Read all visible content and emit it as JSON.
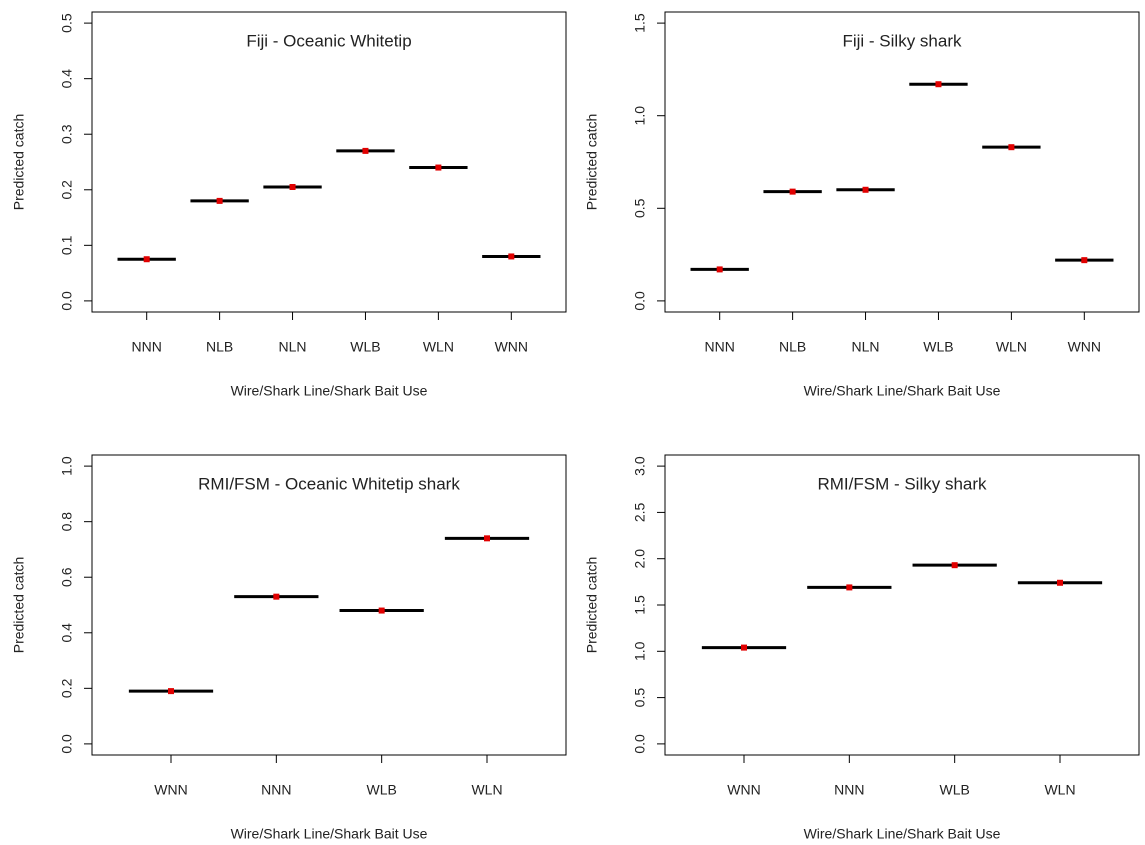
{
  "chart_data": [
    {
      "type": "line-marker",
      "title": "Fiji - Oceanic Whitetip",
      "ylabel": "Predicted catch",
      "xlabel": "Wire/Shark Line/Shark Bait Use",
      "categories": [
        "NNN",
        "NLB",
        "NLN",
        "WLB",
        "WLN",
        "WNN"
      ],
      "values": [
        0.075,
        0.18,
        0.205,
        0.27,
        0.24,
        0.08
      ],
      "color": "#000000",
      "marker_color": "#e00000",
      "ylim": [
        -0.02,
        0.52
      ],
      "yticks": [
        {
          "value": 0,
          "label": "0.0"
        },
        0.1,
        0.2,
        0.3,
        0.4,
        0.5
      ]
    },
    {
      "type": "line-marker",
      "title": "Fiji - Silky shark",
      "ylabel": "Predicted catch",
      "xlabel": "Wire/Shark Line/Shark Bait Use",
      "categories": [
        "NNN",
        "NLB",
        "NLN",
        "WLB",
        "WLN",
        "WNN"
      ],
      "values": [
        0.17,
        0.59,
        0.6,
        1.17,
        0.83,
        0.22
      ],
      "color": "#000000",
      "marker_color": "#e00000",
      "ylim": [
        -0.06,
        1.56
      ],
      "yticks": [
        {
          "value": 0,
          "label": "0.0"
        },
        0.5,
        {
          "value": 1,
          "label": "1.0"
        },
        1.5
      ]
    },
    {
      "type": "line-marker",
      "title": "RMI/FSM - Oceanic Whitetip shark",
      "ylabel": "Predicted catch",
      "xlabel": "Wire/Shark Line/Shark Bait Use",
      "categories": [
        "WNN",
        "NNN",
        "WLB",
        "WLN"
      ],
      "values": [
        0.19,
        0.53,
        0.48,
        0.74
      ],
      "color": "#000000",
      "marker_color": "#e00000",
      "ylim": [
        -0.04,
        1.04
      ],
      "yticks": [
        {
          "value": 0,
          "label": "0.0"
        },
        0.2,
        0.4,
        0.6,
        0.8,
        {
          "value": 1,
          "label": "1.0"
        }
      ]
    },
    {
      "type": "line-marker",
      "title": "RMI/FSM - Silky shark",
      "ylabel": "Predicted catch",
      "xlabel": "Wire/Shark Line/Shark Bait Use",
      "categories": [
        "WNN",
        "NNN",
        "WLB",
        "WLN"
      ],
      "values": [
        1.04,
        1.69,
        1.93,
        1.74
      ],
      "color": "#000000",
      "marker_color": "#e00000",
      "ylim": [
        -0.12,
        3.12
      ],
      "yticks": [
        {
          "value": 0,
          "label": "0.0"
        },
        0.5,
        {
          "value": 1,
          "label": "1.0"
        },
        1.5,
        {
          "value": 2,
          "label": "2.0"
        },
        2.5,
        {
          "value": 3,
          "label": "3.0"
        }
      ]
    }
  ]
}
